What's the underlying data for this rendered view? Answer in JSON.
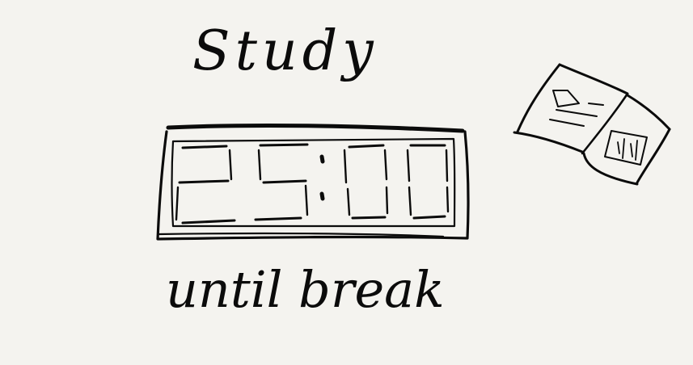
{
  "heading": "Study",
  "timer": {
    "value": "25:00"
  },
  "caption": "until break",
  "colors": {
    "background": "#f4f3ef",
    "ink": "#0b0b0b"
  },
  "icons": {
    "side_sketch": "book-icon"
  }
}
